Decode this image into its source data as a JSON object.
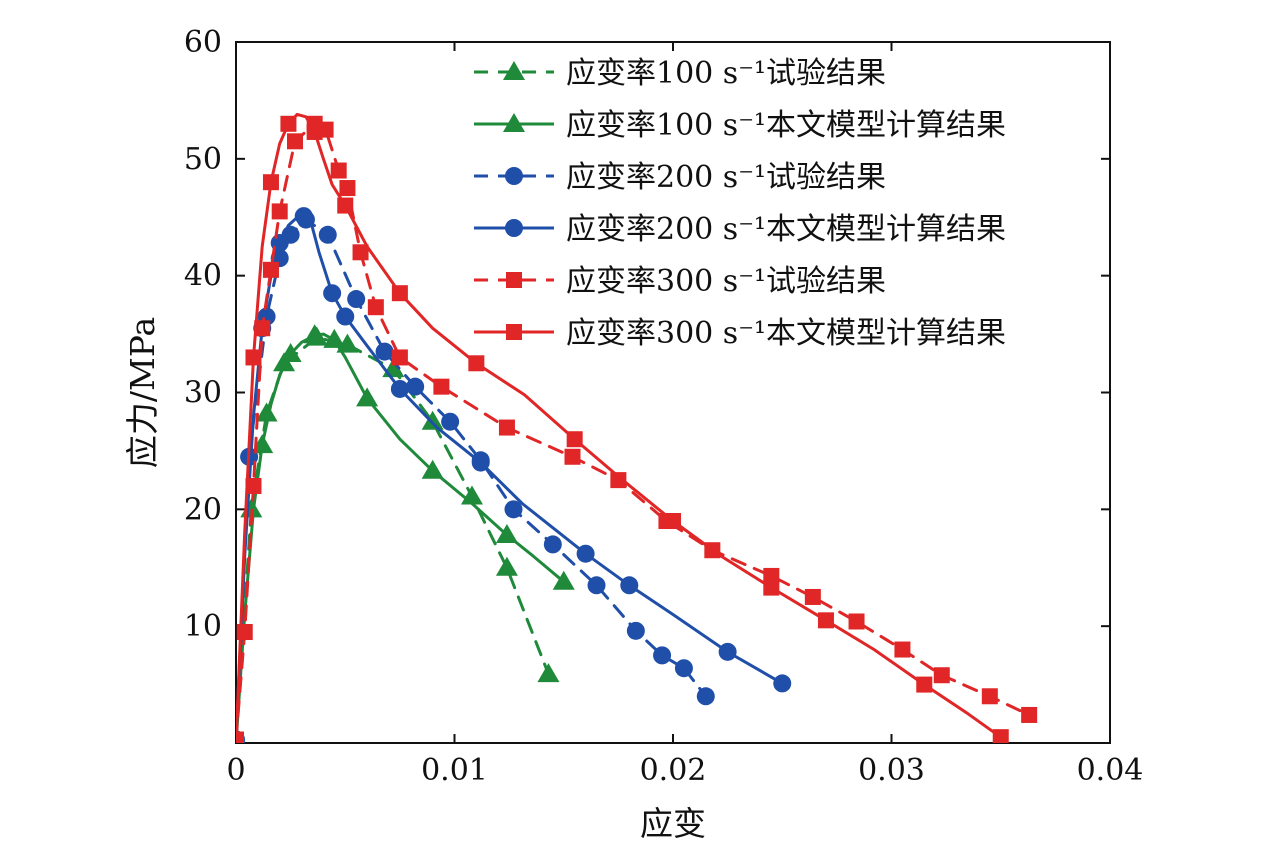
{
  "chart_data": {
    "type": "line",
    "xlabel": "应变",
    "ylabel": "应力/MPa",
    "xlim": [
      0,
      0.04
    ],
    "ylim": [
      0,
      60
    ],
    "x_ticks": [
      0,
      0.01,
      0.02,
      0.03,
      0.04
    ],
    "x_tick_labels": [
      "0",
      "0.01",
      "0.02",
      "0.03",
      "0.04"
    ],
    "y_ticks": [
      10,
      20,
      30,
      40,
      50,
      60
    ],
    "y_tick_labels": [
      "10",
      "20",
      "30",
      "40",
      "50",
      "60"
    ],
    "legend_position": "top-right",
    "grid": false,
    "series": [
      {
        "name": "应变率100 s⁻¹试验结果",
        "color": "#1e8a3a",
        "line_style": "dashed",
        "marker": "triangle",
        "x": [
          0.0,
          0.0007,
          0.0014,
          0.0022,
          0.0037,
          0.0051,
          0.0072,
          0.009,
          0.0108,
          0.0124,
          0.0143
        ],
        "y": [
          0.2,
          20.0,
          28.2,
          32.5,
          34.7,
          34.1,
          32.0,
          27.5,
          21.1,
          15.0,
          5.9
        ]
      },
      {
        "name": "应变率100 s⁻¹本文模型计算结果",
        "color": "#1e8a3a",
        "line_style": "solid",
        "marker": "triangle",
        "x": [
          0.0,
          0.0004,
          0.0008,
          0.0012,
          0.0016,
          0.002,
          0.0025,
          0.003,
          0.0036,
          0.004,
          0.0045,
          0.005,
          0.006,
          0.0075,
          0.009,
          0.0108,
          0.0124,
          0.0136,
          0.015
        ],
        "y": [
          0.0,
          11.0,
          20.0,
          25.5,
          29.0,
          31.5,
          33.3,
          34.3,
          34.9,
          35.0,
          34.5,
          33.0,
          29.5,
          26.0,
          23.3,
          20.5,
          17.8,
          16.0,
          13.8
        ]
      },
      {
        "name": "应变率200 s⁻¹试验结果",
        "color": "#1f4fa8",
        "line_style": "dashed",
        "marker": "circle",
        "x": [
          0.0,
          0.0006,
          0.0014,
          0.002,
          0.0025,
          0.0032,
          0.0042,
          0.0055,
          0.0068,
          0.0082,
          0.0098,
          0.0112,
          0.0127,
          0.0145,
          0.0165,
          0.0183,
          0.0195,
          0.0205,
          0.0215
        ],
        "y": [
          0.3,
          24.5,
          36.5,
          41.5,
          43.5,
          44.8,
          43.5,
          38.0,
          33.5,
          30.5,
          27.5,
          24.2,
          20.0,
          17.0,
          13.5,
          9.6,
          7.5,
          6.4,
          4.0
        ]
      },
      {
        "name": "应变率200 s⁻¹本文模型计算结果",
        "color": "#1f4fa8",
        "line_style": "solid",
        "marker": "circle",
        "x": [
          0.0,
          0.0004,
          0.0008,
          0.0012,
          0.0016,
          0.002,
          0.0024,
          0.0028,
          0.0031,
          0.0034,
          0.0038,
          0.0044,
          0.005,
          0.006,
          0.0075,
          0.0092,
          0.0112,
          0.0131,
          0.016,
          0.018,
          0.02,
          0.0225,
          0.025
        ],
        "y": [
          0.0,
          16.0,
          28.0,
          35.5,
          40.0,
          42.8,
          44.3,
          45.0,
          45.1,
          44.8,
          42.0,
          38.5,
          36.5,
          34.0,
          30.3,
          27.0,
          24.0,
          20.5,
          16.2,
          13.5,
          11.0,
          7.8,
          5.1
        ]
      },
      {
        "name": "应变率300 s⁻¹试验结果",
        "color": "#e02626",
        "line_style": "dashed",
        "marker": "square",
        "x": [
          0.0,
          0.0004,
          0.0008,
          0.0012,
          0.0016,
          0.002,
          0.0027,
          0.0036,
          0.0041,
          0.0047,
          0.0051,
          0.0057,
          0.0064,
          0.0075,
          0.0094,
          0.0124,
          0.0154,
          0.0175,
          0.0197,
          0.0218,
          0.0245,
          0.0264,
          0.0284,
          0.0305,
          0.0323,
          0.0345,
          0.0363
        ],
        "y": [
          0.3,
          9.5,
          22.0,
          35.5,
          40.5,
          45.5,
          51.5,
          53.0,
          52.5,
          49.0,
          47.5,
          42.0,
          37.3,
          33.0,
          30.5,
          27.0,
          24.5,
          22.5,
          19.0,
          16.5,
          14.3,
          12.5,
          10.4,
          8.0,
          5.8,
          4.0,
          2.4
        ]
      },
      {
        "name": "应变率300 s⁻¹本文模型计算结果",
        "color": "#e02626",
        "line_style": "solid",
        "marker": "square",
        "x": [
          0.0,
          0.0004,
          0.0008,
          0.0012,
          0.0016,
          0.002,
          0.0024,
          0.0028,
          0.0032,
          0.0036,
          0.004,
          0.0044,
          0.005,
          0.006,
          0.0075,
          0.009,
          0.011,
          0.0132,
          0.0155,
          0.0177,
          0.02,
          0.0222,
          0.0245,
          0.027,
          0.0292,
          0.0315,
          0.0335,
          0.035
        ],
        "y": [
          0.0,
          18.0,
          33.0,
          42.5,
          48.0,
          51.3,
          53.0,
          53.8,
          53.6,
          52.3,
          50.0,
          47.8,
          46.0,
          42.5,
          38.5,
          35.5,
          32.5,
          29.8,
          26.0,
          22.5,
          19.0,
          16.0,
          13.3,
          10.5,
          8.0,
          5.0,
          2.5,
          0.5
        ]
      }
    ]
  }
}
